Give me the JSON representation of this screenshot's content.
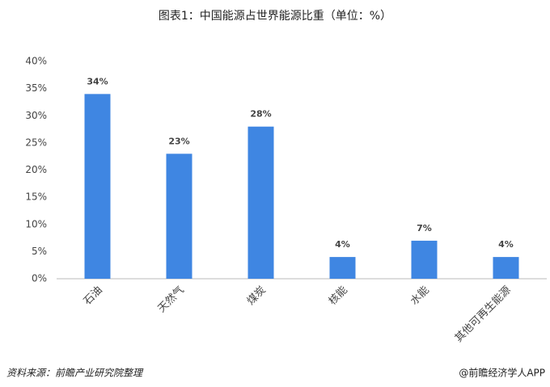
{
  "chart_data": {
    "type": "bar",
    "title": "图表1：中国能源占世界能源比重（单位：%）",
    "categories": [
      "石油",
      "天然气",
      "煤炭",
      "核能",
      "水能",
      "其他可再生能源"
    ],
    "values": [
      34,
      23,
      28,
      4,
      7,
      4
    ],
    "value_labels": [
      "34%",
      "23%",
      "28%",
      "4%",
      "7%",
      "4%"
    ],
    "color": "#3f86e2",
    "ylim": [
      0,
      40
    ],
    "yticks": [
      {
        "value": 0,
        "label": "0%"
      },
      {
        "value": 5,
        "label": "5%"
      },
      {
        "value": 10,
        "label": "10%"
      },
      {
        "value": 15,
        "label": "15%"
      },
      {
        "value": 20,
        "label": "20%"
      },
      {
        "value": 25,
        "label": "25%"
      },
      {
        "value": 30,
        "label": "30%"
      },
      {
        "value": 35,
        "label": "35%"
      },
      {
        "value": 40,
        "label": "40%"
      }
    ],
    "grid": false,
    "source": "资料来源：前瞻产业研究院整理",
    "credit": "@前瞻经济学人APP"
  }
}
